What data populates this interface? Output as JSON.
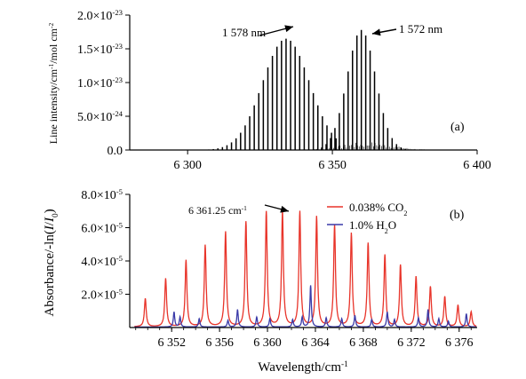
{
  "chart_data": [
    {
      "panel": "(a)",
      "type": "bar",
      "description_of_marks": "vertical stick spectrum (line intensities) of two CO2 bands",
      "xlim": [
        6280,
        6400
      ],
      "ylim": [
        0,
        2e-23
      ],
      "x_ticks": [
        {
          "v": 6300,
          "label": "6 300"
        },
        {
          "v": 6350,
          "label": "6 350"
        },
        {
          "v": 6400,
          "label": "6 400"
        }
      ],
      "y_ticks": [
        {
          "v": 0,
          "label": "0.0"
        },
        {
          "v": 5e-24,
          "label": "5.0×10",
          "exp": "-24"
        },
        {
          "v": 1e-23,
          "label": "1.0×10",
          "exp": "-23"
        },
        {
          "v": 1.5e-23,
          "label": "1.5×10",
          "exp": "-23"
        },
        {
          "v": 2e-23,
          "label": "2.0×10",
          "exp": "-23"
        }
      ],
      "ylabel": "Line intensity/cm⁻¹/mol cm⁻²",
      "ylabel_parts": [
        "Line intensity/cm",
        "-1",
        "/mol cm",
        "-2"
      ],
      "panel_label": "(a)",
      "annotations": [
        {
          "text": "1 578 nm",
          "arrow_to": [
            6334,
            1.65e-23
          ]
        },
        {
          "text": "1 572 nm",
          "arrow_to": [
            6360,
            1.78e-23
          ]
        }
      ],
      "series": [
        {
          "band": "1 578 nm",
          "center": 6334,
          "step": 1.57,
          "peak_x": 6334,
          "peak_y": 1.65e-23,
          "width": 11.5,
          "x_range": [
            6280,
            6352
          ],
          "color": "#000000"
        },
        {
          "band": "1 572 nm",
          "center": 6360,
          "step": 1.52,
          "peak_x": 6360,
          "peak_y": 1.78e-23,
          "width": 7.0,
          "x_range": [
            6342,
            6390
          ],
          "color": "#000000"
        }
      ],
      "weak_lines": {
        "region": [
          6340,
          6388
        ],
        "max_y": 1.2e-24
      }
    },
    {
      "panel": "(b)",
      "type": "line",
      "xlim": [
        6348.5,
        6377.5
      ],
      "ylim": [
        0,
        8e-05
      ],
      "x_ticks": [
        {
          "v": 6352,
          "label": "6 352"
        },
        {
          "v": 6356,
          "label": "6 356"
        },
        {
          "v": 6360,
          "label": "6 360"
        },
        {
          "v": 6364,
          "label": "6 364"
        },
        {
          "v": 6368,
          "label": "6 368"
        },
        {
          "v": 6372,
          "label": "6 372"
        },
        {
          "v": 6376,
          "label": "6 376"
        }
      ],
      "y_ticks": [
        {
          "v": 2e-05,
          "label": "2.0×10",
          "exp": "-5"
        },
        {
          "v": 4e-05,
          "label": "4.0×10",
          "exp": "-5"
        },
        {
          "v": 6e-05,
          "label": "6.0×10",
          "exp": "-5"
        },
        {
          "v": 8e-05,
          "label": "8.0×10",
          "exp": "-5"
        }
      ],
      "xlabel": "Wavelength/cm⁻¹",
      "xlabel_parts": [
        "Wavelength/cm",
        "-1"
      ],
      "ylabel": "Absorbance/-ln(I/I₀)",
      "panel_label": "(b)",
      "annotation": {
        "text": "6 361.25 cm",
        "sup": "-1",
        "arrow_to": [
          6361.25,
          6.9e-05
        ]
      },
      "legend": {
        "placement": "top-right"
      },
      "series": [
        {
          "name": "0.038% CO₂",
          "name_parts": [
            "0.038% CO",
            "2"
          ],
          "color": "#e8342a",
          "peaks": [
            [
              6349.8,
              1.7e-05
            ],
            [
              6351.5,
              2.9e-05
            ],
            [
              6353.2,
              4e-05
            ],
            [
              6354.8,
              4.9e-05
            ],
            [
              6356.5,
              5.7e-05
            ],
            [
              6358.2,
              6.3e-05
            ],
            [
              6359.9,
              6.9e-05
            ],
            [
              6361.25,
              6.95e-05
            ],
            [
              6362.7,
              6.9e-05
            ],
            [
              6364.1,
              6.6e-05
            ],
            [
              6365.6,
              6.1e-05
            ],
            [
              6367.0,
              5.6e-05
            ],
            [
              6368.4,
              5e-05
            ],
            [
              6369.8,
              4.3e-05
            ],
            [
              6371.1,
              3.7e-05
            ],
            [
              6372.4,
              3e-05
            ],
            [
              6373.6,
              2.4e-05
            ],
            [
              6374.8,
              1.8e-05
            ],
            [
              6375.9,
              1.3e-05
            ],
            [
              6377.0,
              9e-06
            ]
          ],
          "baseline": 4e-07,
          "hwhm": 0.09
        },
        {
          "name": "1.0% H₂O",
          "name_parts": [
            "1.0% H",
            "2",
            "O"
          ],
          "color": "#3a3aa8",
          "peaks": [
            [
              6352.2,
              9e-06
            ],
            [
              6352.7,
              6e-06
            ],
            [
              6354.3,
              5e-06
            ],
            [
              6356.7,
              4e-06
            ],
            [
              6357.5,
              1.05e-05
            ],
            [
              6359.1,
              6e-06
            ],
            [
              6360.2,
              5e-06
            ],
            [
              6362.1,
              4.5e-06
            ],
            [
              6362.9,
              6e-06
            ],
            [
              6363.6,
              2.5e-05
            ],
            [
              6364.9,
              5.5e-06
            ],
            [
              6366.2,
              5e-06
            ],
            [
              6367.3,
              7e-06
            ],
            [
              6368.7,
              4.5e-06
            ],
            [
              6370.0,
              9e-06
            ],
            [
              6370.6,
              4.5e-06
            ],
            [
              6372.6,
              5.5e-06
            ],
            [
              6373.4,
              1.05e-05
            ],
            [
              6374.3,
              5e-06
            ],
            [
              6375.1,
              3.5e-06
            ],
            [
              6376.6,
              8e-06
            ]
          ],
          "baseline": 3e-07,
          "hwhm": 0.07
        }
      ]
    }
  ]
}
